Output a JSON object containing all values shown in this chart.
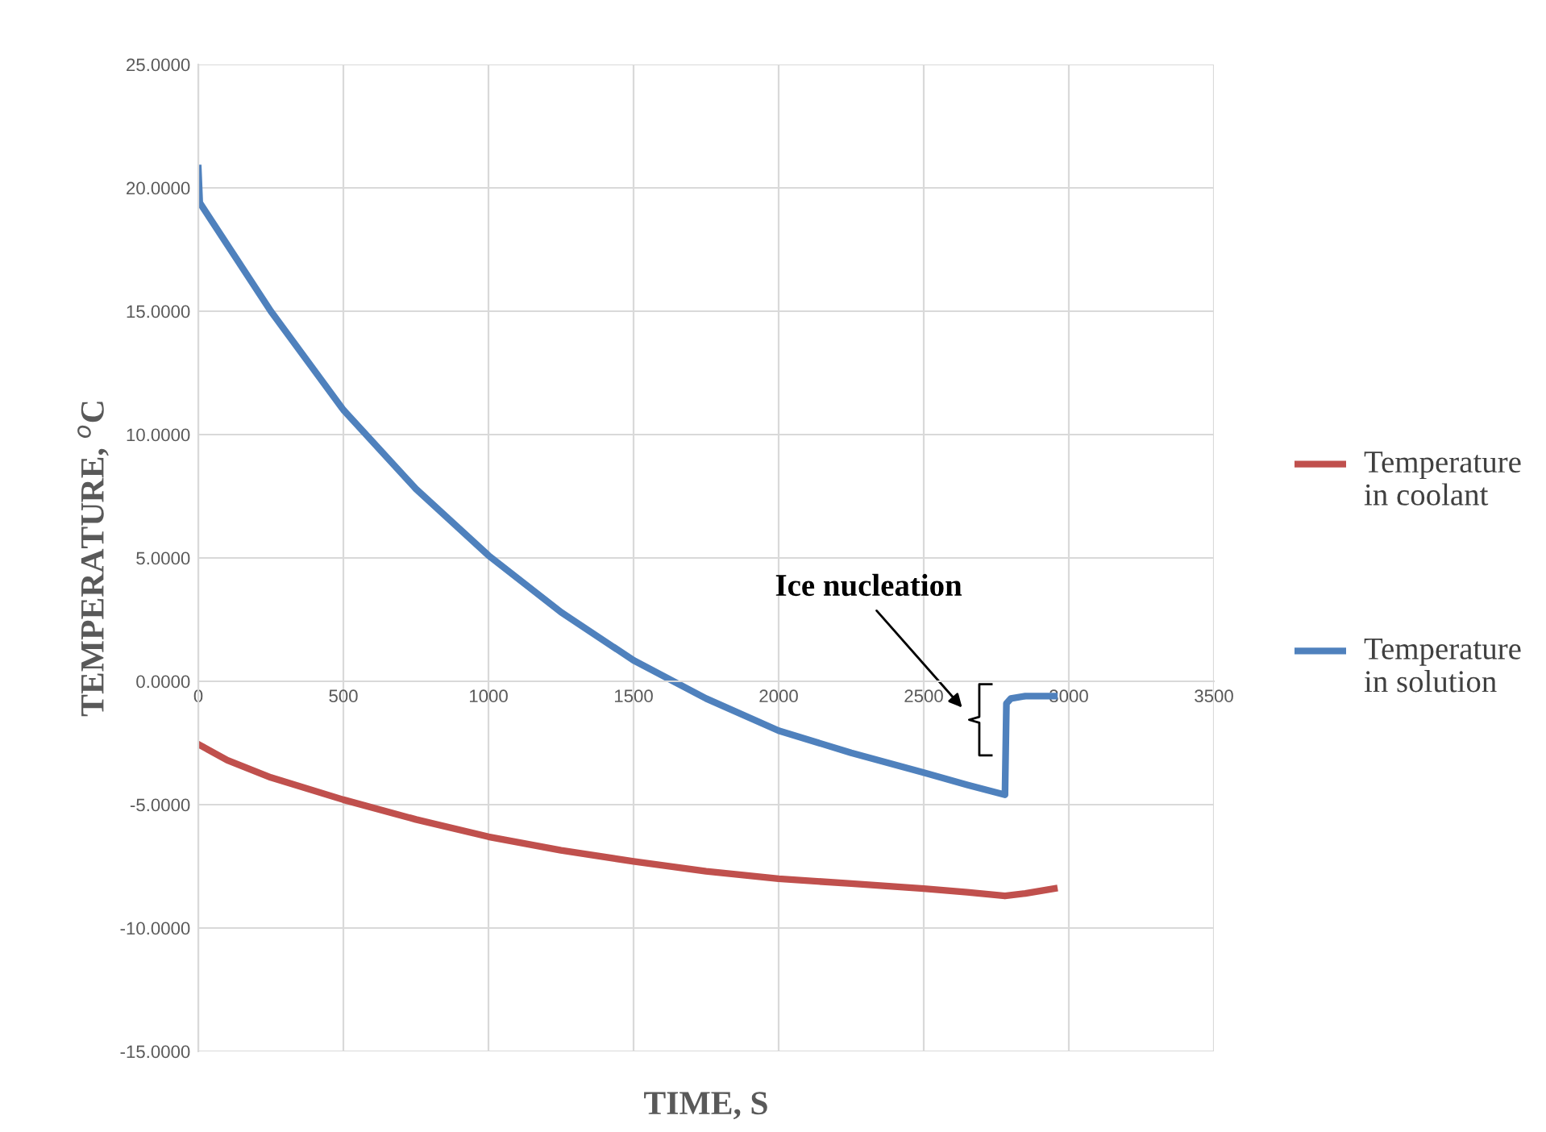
{
  "chart_data": {
    "type": "line",
    "xlabel": "TIME, S",
    "ylabel": "TEMPERATURE, $^{o}$C",
    "series": [
      {
        "name": "Temperature in coolant",
        "color": "#c0504d",
        "x": [
          0,
          100,
          250,
          500,
          750,
          1000,
          1250,
          1500,
          1750,
          2000,
          2250,
          2500,
          2650,
          2780,
          2850,
          2950
        ],
        "values": [
          -2.55,
          -3.2,
          -3.9,
          -4.8,
          -5.6,
          -6.3,
          -6.85,
          -7.3,
          -7.7,
          -8.0,
          -8.2,
          -8.4,
          -8.55,
          -8.7,
          -8.6,
          -8.4
        ]
      },
      {
        "name": "Temperature in solution",
        "color": "#4f81bd",
        "x": [
          0,
          5,
          250,
          500,
          750,
          1000,
          1250,
          1500,
          1750,
          2000,
          2250,
          2500,
          2650,
          2780,
          2785,
          2800,
          2850,
          2950
        ],
        "values": [
          20.8,
          19.4,
          15.0,
          11.0,
          7.8,
          5.1,
          2.8,
          0.85,
          -0.7,
          -2.0,
          -2.9,
          -3.7,
          -4.2,
          -4.6,
          -0.9,
          -0.7,
          -0.6,
          -0.6
        ]
      }
    ],
    "annotations": [
      "Ice nucleation"
    ],
    "xlim": [
      0,
      3500
    ],
    "xticks": [
      0,
      500,
      1000,
      1500,
      2000,
      2500,
      3000,
      3500
    ],
    "ylim": [
      -15,
      25
    ],
    "yticks": [
      {
        "value": -15,
        "label": "-15.0000"
      },
      {
        "value": -10,
        "label": "-10.0000"
      },
      {
        "value": -5,
        "label": "-5.0000"
      },
      {
        "value": 0,
        "label": "0.0000"
      },
      {
        "value": 5,
        "label": "5.0000"
      },
      {
        "value": 10,
        "label": "10.0000"
      },
      {
        "value": 15,
        "label": "15.0000"
      },
      {
        "value": 20,
        "label": "20.0000"
      },
      {
        "value": 25,
        "label": "25.0000"
      }
    ],
    "grid": true,
    "legend": "right",
    "marker": "none",
    "line_style": "solid"
  }
}
